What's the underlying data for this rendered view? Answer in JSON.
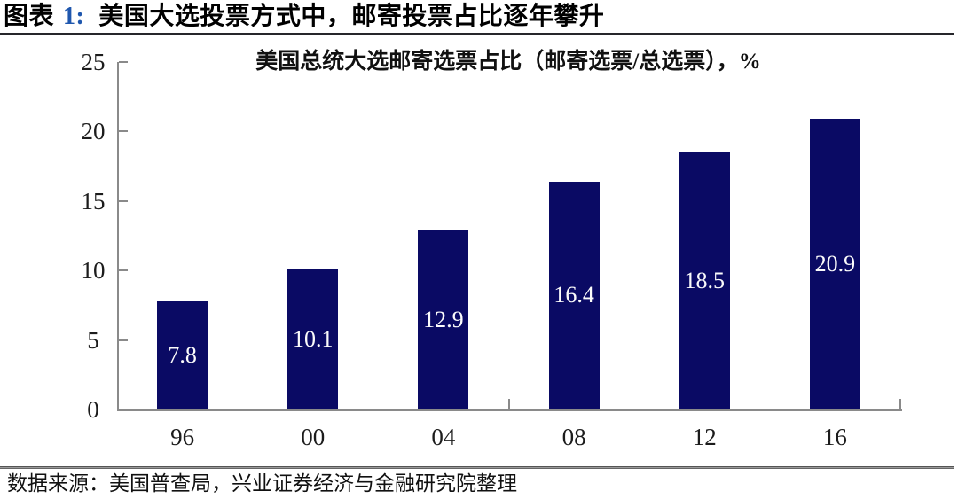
{
  "header": {
    "prefix": "图表",
    "number": "1:",
    "title": "美国大选投票方式中，邮寄投票占比逐年攀升"
  },
  "chart_data": {
    "type": "bar",
    "title": "美国总统大选邮寄选票占比（邮寄选票/总选票），%",
    "categories": [
      "96",
      "00",
      "04",
      "08",
      "12",
      "16"
    ],
    "values": [
      7.8,
      10.1,
      12.9,
      16.4,
      18.5,
      20.9
    ],
    "value_labels": [
      "7.8",
      "10.1",
      "12.9",
      "16.4",
      "18.5",
      "20.9"
    ],
    "ylim": [
      0,
      25
    ],
    "yticks": [
      0,
      5,
      10,
      15,
      20,
      25
    ],
    "xlabel": "",
    "ylabel": "",
    "grid": false,
    "legend_position": "none",
    "x_tick_interval": 3
  },
  "footer": {
    "source": "数据来源：美国普查局，兴业证券经济与金融研究院整理"
  },
  "colors": {
    "bar_navy": "#0a0a64",
    "caption_number_blue": "#1f57ae",
    "axis_gray": "#8a8a8a",
    "value_label_white": "#fbfbfb"
  }
}
